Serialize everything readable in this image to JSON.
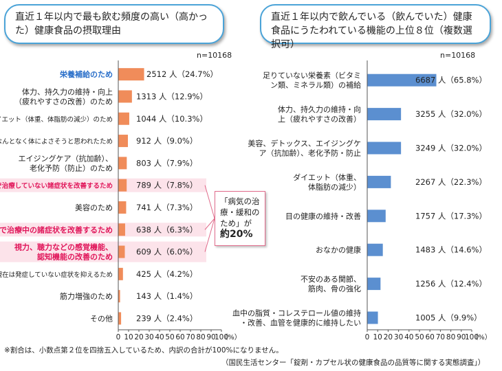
{
  "left": {
    "title": "直近１年以内で最も飲む頻度の高い（高かった）健康食品の摂取理由",
    "n_label": "n=10168",
    "callout_text": "「病気の治療・緩和のため」が",
    "callout_big": "約20%"
  },
  "right": {
    "title": "直近１年以内で飲んでいる（飲んでいた）健康食品にうたわれている機能の上位８位（複数選択可）",
    "n_label": "n=10168"
  },
  "footnote1": "※割合は、小数点第２位を四捨五入しているため、内訳の合計が100%になりません。",
  "footnote2": "（国民生活センター「錠剤・カプセル状の健康食品の品質等に関する実態調査」）",
  "colors": {
    "left_bar": "#f08c5a",
    "right_bar": "#5b8fd0",
    "highlight": "#fce3ea",
    "highlight_text": "#e0165a",
    "top_text": "#2a6fc9"
  },
  "chart_data": [
    {
      "type": "bar",
      "orientation": "horizontal",
      "xlim": [
        0,
        100
      ],
      "x_ticks": [
        0,
        10,
        20,
        30,
        40,
        50,
        60,
        70,
        80,
        90,
        100
      ],
      "x_unit": "（%）",
      "categories": [
        [
          "栄養補給のため"
        ],
        [
          "体力、持久力の維持・向上",
          "（疲れやすさの改善）のため"
        ],
        [
          "ダイエット（体重、体脂肪の減少）のため"
        ],
        [
          "なんとなく体によさそうと思われたため"
        ],
        [
          "エイジングケア（抗加齢）、",
          "老化予防（防止）のため"
        ],
        [
          "病院で治療していない諸症状を改善するため"
        ],
        [
          "美容のため"
        ],
        [
          "病院で治療中の諸症状を改善するため"
        ],
        [
          "視力、聴力などの感覚機能、",
          "認知機能の改善のため"
        ],
        [
          "現在は発症していない症状を抑えるため"
        ],
        [
          "筋力増強のため"
        ],
        [
          "その他"
        ]
      ],
      "values": [
        24.7,
        12.9,
        10.3,
        9.0,
        7.9,
        7.8,
        7.3,
        6.3,
        6.0,
        4.2,
        1.4,
        2.4
      ],
      "labels": [
        "2512 人（24.7%）",
        "1313 人（12.9%）",
        "1044 人（10.3%）",
        "912 人（9.0%）",
        "803 人（7.9%）",
        "789 人（7.8%）",
        "741 人（7.3%）",
        "638 人（6.3%）",
        "609 人（6.0%）",
        "425 人（4.2%）",
        "143 人（1.4%）",
        "239 人（2.4%）"
      ],
      "highlighted": [
        5,
        7,
        8
      ],
      "emphasized": [
        0
      ]
    },
    {
      "type": "bar",
      "orientation": "horizontal",
      "xlim": [
        0,
        100
      ],
      "x_ticks": [
        0,
        10,
        20,
        30,
        40,
        50,
        60,
        70,
        80,
        90,
        100
      ],
      "x_unit": "（%）",
      "categories": [
        [
          "足りていない栄養素（ビタミ",
          "ン類、ミネラル類）の補給"
        ],
        [
          "体力、持久力の維持・向",
          "上（疲れやすさの改善）"
        ],
        [
          "美容、デトックス、エイジングケ",
          "ア（抗加齢）、老化予防・防止"
        ],
        [
          "ダイエット（体重、",
          "体脂肪の減少）"
        ],
        [
          "目の健康の維持・改善"
        ],
        [
          "おなかの健康"
        ],
        [
          "不安のある関節、",
          "筋肉、骨の強化"
        ],
        [
          "血中の脂質・コレステロール値の維持",
          "・改善、血管を健康的に維持したい"
        ]
      ],
      "values": [
        65.8,
        32.0,
        32.0,
        22.3,
        17.3,
        14.6,
        12.4,
        9.9
      ],
      "labels": [
        "6687 人（65.8%）",
        "3255 人（32.0%）",
        "3249 人（32.0%）",
        "2267 人（22.3%）",
        "1757 人（17.3%）",
        "1483 人（14.6%）",
        "1256 人（12.4%）",
        "1005 人（9.9%）"
      ]
    }
  ]
}
